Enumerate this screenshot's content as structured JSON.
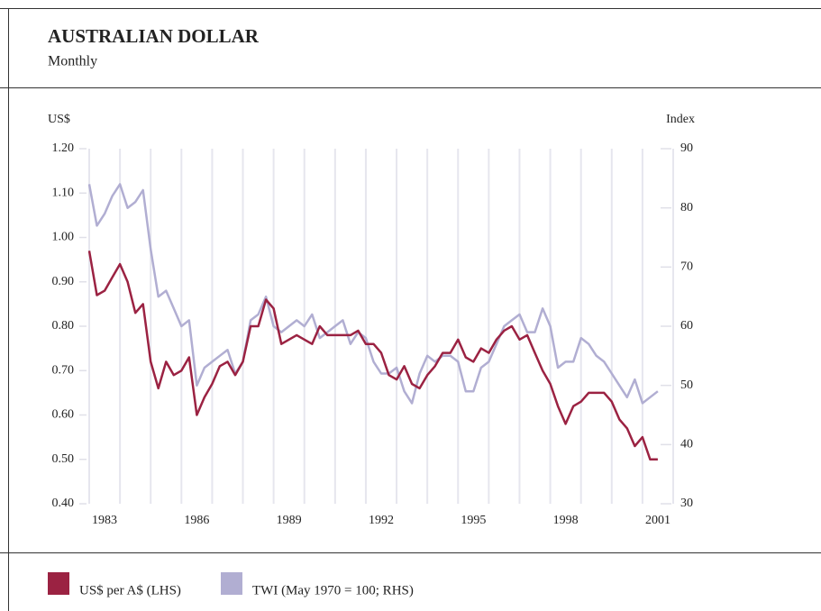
{
  "chart_data": {
    "type": "line",
    "title": "AUSTRALIAN DOLLAR",
    "subtitle": "Monthly",
    "ylabel": "US$",
    "y2label": "Index",
    "xlim": [
      1983,
      2002
    ],
    "xticks": [
      {
        "value": 1983.5,
        "label": "1983"
      },
      {
        "value": 1986.5,
        "label": "1986"
      },
      {
        "value": 1989.5,
        "label": "1989"
      },
      {
        "value": 1992.5,
        "label": "1992"
      },
      {
        "value": 1995.5,
        "label": "1995"
      },
      {
        "value": 1998.5,
        "label": "1998"
      },
      {
        "value": 2001.5,
        "label": "2001"
      }
    ],
    "xgrid": [
      1983,
      1984,
      1985,
      1986,
      1987,
      1988,
      1989,
      1990,
      1991,
      1992,
      1993,
      1994,
      1995,
      1996,
      1997,
      1998,
      1999,
      2000,
      2001,
      2002
    ],
    "ylim": [
      0.4,
      1.2
    ],
    "yticks": [
      {
        "value": 0.4,
        "label": "0.40"
      },
      {
        "value": 0.5,
        "label": "0.50"
      },
      {
        "value": 0.6,
        "label": "0.60"
      },
      {
        "value": 0.7,
        "label": "0.70"
      },
      {
        "value": 0.8,
        "label": "0.80"
      },
      {
        "value": 0.9,
        "label": "0.90"
      },
      {
        "value": 1.0,
        "label": "1.00"
      },
      {
        "value": 1.1,
        "label": "1.10"
      },
      {
        "value": 1.2,
        "label": "1.20"
      }
    ],
    "y2lim": [
      30,
      90
    ],
    "y2ticks": [
      30,
      40,
      50,
      60,
      70,
      80,
      90
    ],
    "x": [
      1983,
      1983.25,
      1983.5,
      1983.75,
      1984,
      1984.25,
      1984.5,
      1984.75,
      1985,
      1985.25,
      1985.5,
      1985.75,
      1986,
      1986.25,
      1986.5,
      1986.75,
      1987,
      1987.25,
      1987.5,
      1987.75,
      1988,
      1988.25,
      1988.5,
      1988.75,
      1989,
      1989.25,
      1989.5,
      1989.75,
      1990,
      1990.25,
      1990.5,
      1990.75,
      1991,
      1991.25,
      1991.5,
      1991.75,
      1992,
      1992.25,
      1992.5,
      1992.75,
      1993,
      1993.25,
      1993.5,
      1993.75,
      1994,
      1994.25,
      1994.5,
      1994.75,
      1995,
      1995.25,
      1995.5,
      1995.75,
      1996,
      1996.25,
      1996.5,
      1996.75,
      1997,
      1997.25,
      1997.5,
      1997.75,
      1998,
      1998.25,
      1998.5,
      1998.75,
      1999,
      1999.25,
      1999.5,
      1999.75,
      2000,
      2000.25,
      2000.5,
      2000.75,
      2001,
      2001.25,
      2001.5
    ],
    "series": [
      {
        "name": "TWI (May 1970 = 100; RHS)",
        "color": "#b1aed2",
        "axis": "y2",
        "values": [
          84,
          77,
          79,
          82,
          84,
          80,
          81,
          83,
          73,
          65,
          66,
          63,
          60,
          61,
          50,
          53,
          54,
          55,
          56,
          52,
          54,
          61,
          62,
          65,
          60,
          59,
          60,
          61,
          60,
          62,
          58,
          59,
          60,
          61,
          57,
          59,
          58,
          54,
          52,
          52,
          53,
          49,
          47,
          52,
          55,
          54,
          55,
          55,
          54,
          49,
          49,
          53,
          54,
          57,
          60,
          61,
          62,
          59,
          59,
          63,
          60,
          53,
          54,
          54,
          58,
          57,
          55,
          54,
          52,
          50,
          48,
          51,
          47,
          48,
          49
        ]
      },
      {
        "name": "US$ per A$ (LHS)",
        "color": "#9b2242",
        "values": [
          0.97,
          0.87,
          0.88,
          0.91,
          0.94,
          0.9,
          0.83,
          0.85,
          0.72,
          0.66,
          0.72,
          0.69,
          0.7,
          0.73,
          0.6,
          0.64,
          0.67,
          0.71,
          0.72,
          0.69,
          0.72,
          0.8,
          0.8,
          0.86,
          0.84,
          0.76,
          0.77,
          0.78,
          0.77,
          0.76,
          0.8,
          0.78,
          0.78,
          0.78,
          0.78,
          0.79,
          0.76,
          0.76,
          0.74,
          0.69,
          0.68,
          0.71,
          0.67,
          0.66,
          0.69,
          0.71,
          0.74,
          0.74,
          0.77,
          0.73,
          0.72,
          0.75,
          0.74,
          0.77,
          0.79,
          0.8,
          0.77,
          0.78,
          0.74,
          0.7,
          0.67,
          0.62,
          0.58,
          0.62,
          0.63,
          0.65,
          0.65,
          0.65,
          0.63,
          0.59,
          0.57,
          0.53,
          0.55,
          0.5,
          0.5
        ]
      }
    ]
  }
}
